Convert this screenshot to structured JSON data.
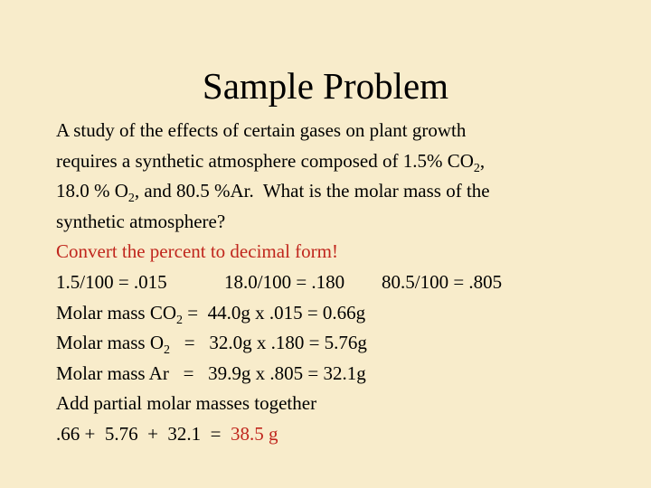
{
  "title": "Sample Problem",
  "body": {
    "lines": [
      [
        "A study of the effects of certain gases on plant growth"
      ],
      [
        "requires a synthetic atmosphere composed of 1.5% CO",
        "2",
        ","
      ],
      [
        "18.0 % O",
        "2",
        ", and 80.5 %Ar.  What is the molar mass of the"
      ],
      [
        "synthetic atmosphere?"
      ],
      [
        "Convert the percent to decimal form!"
      ],
      [
        "1.5/100 = .015",
        "18.0/100 = .180",
        "80.5/100 = .805"
      ],
      [
        "Molar mass CO",
        "2",
        " =  44.0g x .015 = 0.66g"
      ],
      [
        "Molar mass O",
        "2",
        "   =   32.0g x .180 = 5.76g"
      ],
      [
        "Molar mass Ar   =   39.9g x .805 = 32.1g"
      ],
      [
        "Add partial molar masses together"
      ],
      [
        ".66 +  5.76  +  32.1  =  ",
        "38.5 g"
      ]
    ]
  }
}
